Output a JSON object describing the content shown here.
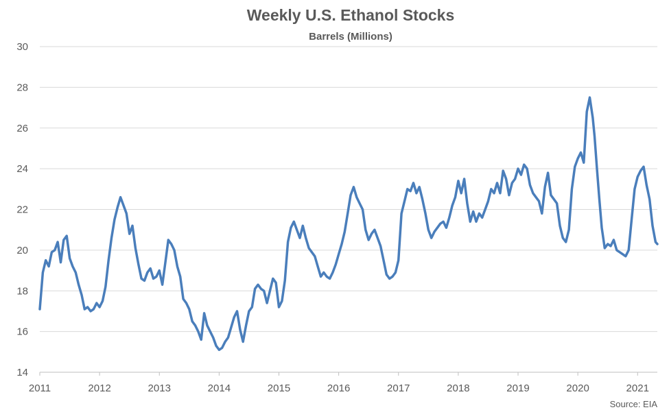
{
  "chart_data": {
    "type": "line",
    "title": "Weekly U.S. Ethanol Stocks",
    "subtitle": "Barrels (Millions)",
    "xlabel": "",
    "ylabel": "",
    "source": "Source: EIA",
    "ylim": [
      14,
      30
    ],
    "xlim": [
      2011,
      2021.33
    ],
    "yticks": [
      "14",
      "16",
      "18",
      "20",
      "22",
      "24",
      "26",
      "28",
      "30"
    ],
    "xticks": [
      "2011",
      "2012",
      "2013",
      "2014",
      "2015",
      "2016",
      "2017",
      "2018",
      "2019",
      "2020",
      "2021"
    ],
    "grid": true,
    "legend": "none",
    "color": "#4a7ebb",
    "series": [
      {
        "x": [
          2011.0,
          2011.05,
          2011.1,
          2011.15,
          2011.2,
          2011.25,
          2011.3,
          2011.35,
          2011.4,
          2011.45,
          2011.5,
          2011.55,
          2011.6,
          2011.65,
          2011.7,
          2011.75,
          2011.8,
          2011.85,
          2011.9,
          2011.95,
          2012.0,
          2012.05,
          2012.1,
          2012.15,
          2012.2,
          2012.25,
          2012.3,
          2012.35,
          2012.4,
          2012.45,
          2012.5,
          2012.55,
          2012.6,
          2012.65,
          2012.7,
          2012.75,
          2012.8,
          2012.85,
          2012.9,
          2012.95,
          2013.0,
          2013.05,
          2013.1,
          2013.15,
          2013.2,
          2013.25,
          2013.3,
          2013.35,
          2013.4,
          2013.45,
          2013.5,
          2013.55,
          2013.6,
          2013.65,
          2013.7,
          2013.75,
          2013.8,
          2013.85,
          2013.9,
          2013.95,
          2014.0,
          2014.05,
          2014.1,
          2014.15,
          2014.2,
          2014.25,
          2014.3,
          2014.35,
          2014.4,
          2014.45,
          2014.5,
          2014.55,
          2014.6,
          2014.65,
          2014.7,
          2014.75,
          2014.8,
          2014.85,
          2014.9,
          2014.95,
          2015.0,
          2015.05,
          2015.1,
          2015.15,
          2015.2,
          2015.25,
          2015.3,
          2015.35,
          2015.4,
          2015.45,
          2015.5,
          2015.55,
          2015.6,
          2015.65,
          2015.7,
          2015.75,
          2015.8,
          2015.85,
          2015.9,
          2015.95,
          2016.0,
          2016.05,
          2016.1,
          2016.15,
          2016.2,
          2016.25,
          2016.3,
          2016.35,
          2016.4,
          2016.45,
          2016.5,
          2016.55,
          2016.6,
          2016.65,
          2016.7,
          2016.75,
          2016.8,
          2016.85,
          2016.9,
          2016.95,
          2017.0,
          2017.05,
          2017.1,
          2017.15,
          2017.2,
          2017.25,
          2017.3,
          2017.35,
          2017.4,
          2017.45,
          2017.5,
          2017.55,
          2017.6,
          2017.65,
          2017.7,
          2017.75,
          2017.8,
          2017.85,
          2017.9,
          2017.95,
          2018.0,
          2018.05,
          2018.1,
          2018.15,
          2018.2,
          2018.25,
          2018.3,
          2018.35,
          2018.4,
          2018.45,
          2018.5,
          2018.55,
          2018.6,
          2018.65,
          2018.7,
          2018.75,
          2018.8,
          2018.85,
          2018.9,
          2018.95,
          2019.0,
          2019.05,
          2019.1,
          2019.15,
          2019.2,
          2019.25,
          2019.3,
          2019.35,
          2019.4,
          2019.45,
          2019.5,
          2019.55,
          2019.6,
          2019.65,
          2019.7,
          2019.75,
          2019.8,
          2019.85,
          2019.9,
          2019.95,
          2020.0,
          2020.05,
          2020.1,
          2020.15,
          2020.2,
          2020.25,
          2020.28,
          2020.32,
          2020.36,
          2020.4,
          2020.45,
          2020.5,
          2020.55,
          2020.6,
          2020.65,
          2020.7,
          2020.75,
          2020.8,
          2020.85,
          2020.9,
          2020.95,
          2021.0,
          2021.05,
          2021.1,
          2021.15,
          2021.2,
          2021.25,
          2021.3,
          2021.33
        ],
        "values": [
          17.1,
          18.9,
          19.5,
          19.2,
          19.9,
          20.0,
          20.4,
          19.4,
          20.5,
          20.7,
          19.6,
          19.2,
          18.9,
          18.3,
          17.8,
          17.1,
          17.2,
          17.0,
          17.1,
          17.4,
          17.2,
          17.5,
          18.2,
          19.5,
          20.6,
          21.5,
          22.1,
          22.6,
          22.2,
          21.8,
          20.8,
          21.2,
          20.1,
          19.3,
          18.6,
          18.5,
          18.9,
          19.1,
          18.6,
          18.7,
          19.0,
          18.3,
          19.4,
          20.5,
          20.3,
          20.0,
          19.2,
          18.7,
          17.6,
          17.4,
          17.1,
          16.5,
          16.3,
          16.0,
          15.6,
          16.9,
          16.3,
          16.0,
          15.7,
          15.3,
          15.1,
          15.2,
          15.5,
          15.7,
          16.2,
          16.7,
          17.0,
          16.1,
          15.5,
          16.3,
          17.0,
          17.2,
          18.1,
          18.3,
          18.1,
          18.0,
          17.4,
          18.0,
          18.6,
          18.4,
          17.2,
          17.5,
          18.5,
          20.4,
          21.1,
          21.4,
          21.0,
          20.6,
          21.2,
          20.6,
          20.1,
          19.9,
          19.7,
          19.2,
          18.7,
          18.9,
          18.7,
          18.6,
          18.9,
          19.3,
          19.8,
          20.3,
          20.9,
          21.8,
          22.7,
          23.1,
          22.6,
          22.3,
          22.0,
          21.0,
          20.5,
          20.8,
          21.0,
          20.6,
          20.2,
          19.5,
          18.8,
          18.6,
          18.7,
          18.9,
          19.5,
          21.8,
          22.4,
          23.0,
          22.9,
          23.3,
          22.8,
          23.1,
          22.5,
          21.8,
          21.0,
          20.6,
          20.9,
          21.1,
          21.3,
          21.4,
          21.1,
          21.6,
          22.2,
          22.6,
          23.4,
          22.8,
          23.5,
          22.3,
          21.4,
          21.9,
          21.4,
          21.8,
          21.6,
          22.0,
          22.4,
          23.0,
          22.8,
          23.3,
          22.8,
          23.9,
          23.5,
          22.7,
          23.3,
          23.5,
          24.0,
          23.7,
          24.2,
          24.0,
          23.2,
          22.8,
          22.6,
          22.4,
          21.8,
          23.1,
          23.8,
          22.7,
          22.5,
          22.3,
          21.2,
          20.6,
          20.4,
          21.0,
          23.0,
          24.1,
          24.5,
          24.8,
          24.3,
          26.8,
          27.5,
          26.5,
          25.6,
          24.0,
          22.5,
          21.1,
          20.1,
          20.3,
          20.2,
          20.5,
          20.0,
          19.9,
          19.8,
          19.7,
          20.0,
          21.5,
          23.0,
          23.6,
          23.9,
          24.1,
          23.2,
          22.5,
          21.2,
          20.4,
          20.3
        ]
      }
    ]
  }
}
